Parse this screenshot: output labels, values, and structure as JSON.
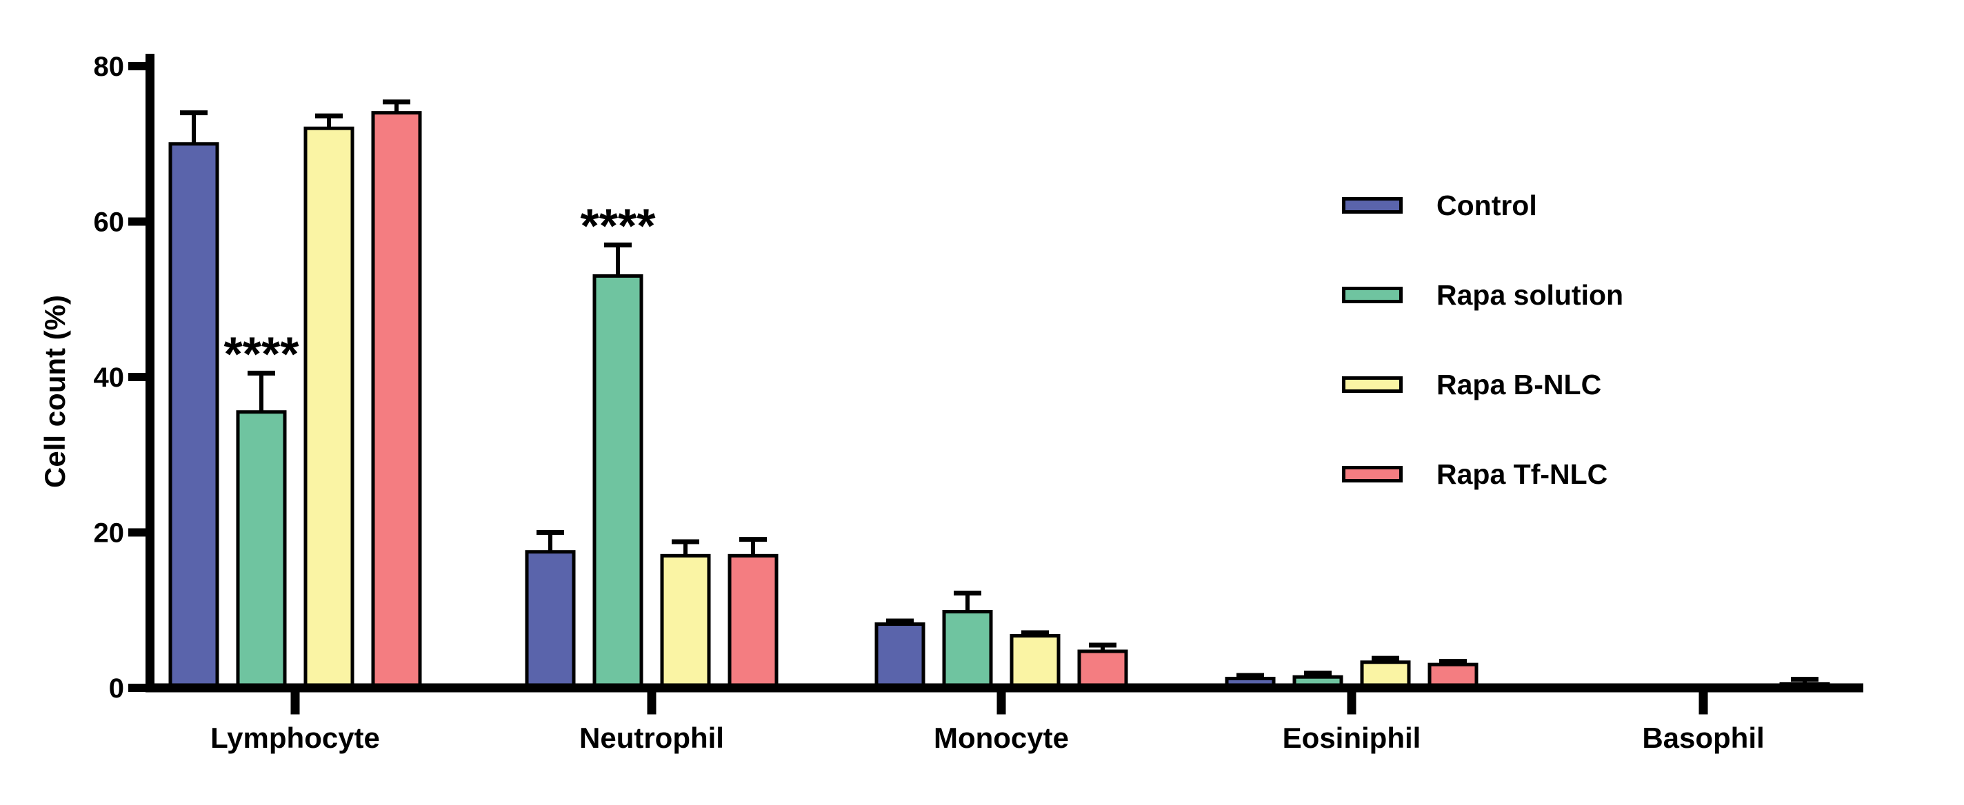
{
  "figure": {
    "background": "#FFFFFF",
    "axis_color": "#000000"
  },
  "chart_data": {
    "type": "bar",
    "title": "",
    "xlabel": "",
    "ylabel": "Cell count (%)",
    "ylim": [
      0,
      80
    ],
    "yticks": [
      0,
      20,
      40,
      60,
      80
    ],
    "grid": false,
    "legend_position": "right-inside",
    "error_bars": "upper only (+SD)",
    "categories": [
      "Lymphocyte",
      "Neutrophil",
      "Monocyte",
      "Eosiniphil",
      "Basophil"
    ],
    "series": [
      {
        "name": "Control",
        "color": "#5A64AB",
        "values": [
          70,
          17.5,
          8.2,
          1.2,
          0
        ],
        "errors": [
          4,
          2.5,
          0.4,
          0.4,
          0
        ]
      },
      {
        "name": "Rapa solution",
        "color": "#6FC4A0",
        "values": [
          35.5,
          53,
          9.8,
          1.4,
          0
        ],
        "errors": [
          5,
          4,
          2.4,
          0.5,
          0
        ]
      },
      {
        "name": "Rapa B-NLC",
        "color": "#FAF4A4",
        "values": [
          72,
          17,
          6.7,
          3.3,
          0
        ],
        "errors": [
          1.6,
          1.8,
          0.4,
          0.5,
          0
        ]
      },
      {
        "name": "Rapa Tf-NLC",
        "color": "#F47D81",
        "values": [
          74,
          17,
          4.7,
          3,
          0.5
        ],
        "errors": [
          1.4,
          2.1,
          0.8,
          0.4,
          0.6
        ]
      }
    ],
    "annotations": [
      {
        "text": "****",
        "category": "Lymphocyte",
        "series": "Rapa solution"
      },
      {
        "text": "****",
        "category": "Neutrophil",
        "series": "Rapa solution"
      }
    ]
  }
}
